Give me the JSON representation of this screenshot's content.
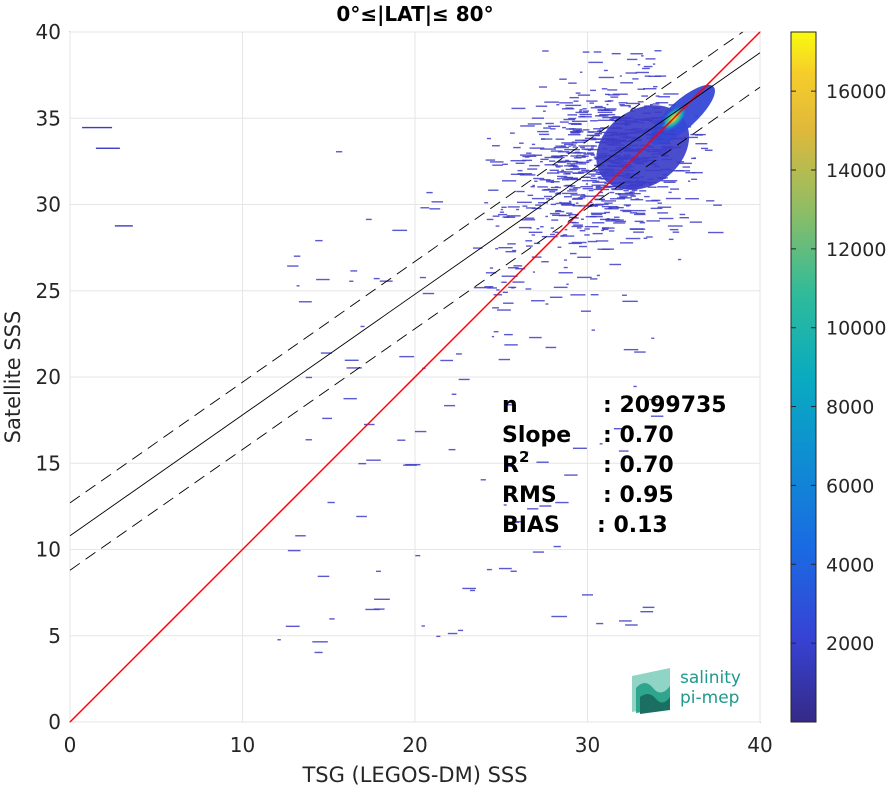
{
  "chart_data": {
    "type": "heatmap",
    "title": "0°≤|LAT|≤ 80°",
    "xlabel": "TSG (LEGOS-DM) SSS",
    "ylabel": "Satellite SSS",
    "xlim": [
      0,
      40
    ],
    "ylim": [
      0,
      40
    ],
    "xticks": [
      "0",
      "10",
      "20",
      "30",
      "40"
    ],
    "yticks": [
      "0",
      "5",
      "10",
      "15",
      "20",
      "25",
      "30",
      "35",
      "40"
    ],
    "grid": true,
    "colorbar": {
      "range": [
        0,
        17500
      ],
      "ticks": [
        "2000",
        "4000",
        "6000",
        "8000",
        "10000",
        "12000",
        "14000",
        "16000"
      ],
      "colormap": "parula"
    },
    "lines": [
      {
        "kind": "identity",
        "color": "#ff0000",
        "points": [
          [
            0,
            0
          ],
          [
            40,
            40
          ]
        ]
      },
      {
        "kind": "regression",
        "color": "#000000",
        "intercept": 10.8,
        "slope": 0.7
      },
      {
        "kind": "regression-upper",
        "color": "#000000",
        "dash": true,
        "intercept": 12.7,
        "slope": 0.7
      },
      {
        "kind": "regression-lower",
        "color": "#000000",
        "dash": true,
        "intercept": 8.8,
        "slope": 0.7
      }
    ],
    "density_peak": {
      "x": 35.0,
      "y": 35.0,
      "count": 17500
    },
    "stats": [
      {
        "label": "n",
        "value": ": 2099735"
      },
      {
        "label": "Slope",
        "value": ": 0.70"
      },
      {
        "label": "R",
        "sup": "2",
        "value": ": 0.70"
      },
      {
        "label": "RMS",
        "value": ": 0.95"
      },
      {
        "label": "BIAS",
        "value": ": 0.13"
      }
    ]
  },
  "logo": {
    "line1": "salinity",
    "line2": "pi-mep"
  }
}
